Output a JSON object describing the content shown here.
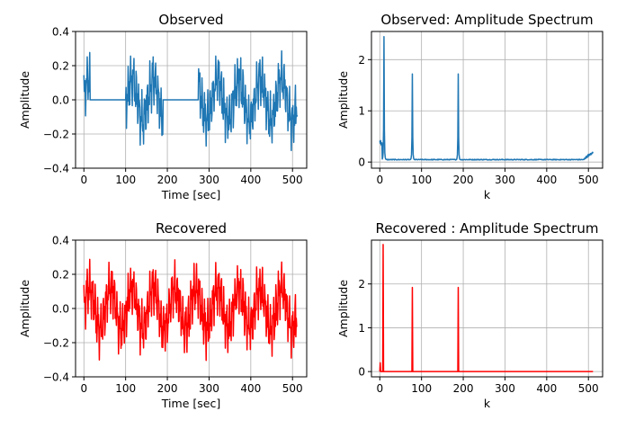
{
  "chart_data": [
    {
      "type": "line",
      "title": "Observed",
      "xlabel": "Time [sec]",
      "ylabel": "Amplitude",
      "xlim": [
        -20,
        534
      ],
      "ylim": [
        -0.4,
        0.4
      ],
      "xticks": [
        0,
        100,
        200,
        300,
        400,
        500
      ],
      "yticks": [
        -0.4,
        -0.2,
        0.0,
        0.2,
        0.4
      ],
      "ytick_labels": [
        "−0.4",
        "−0.2",
        "0.0",
        "0.2",
        "0.4"
      ],
      "grid": true,
      "color": "#1f77b4",
      "series": [
        {
          "signal": "time",
          "n": 512,
          "gaps": [
            [
              15,
              100
            ],
            [
              190,
              275
            ]
          ]
        }
      ]
    },
    {
      "type": "line",
      "title": "Observed: Amplitude Spectrum",
      "xlabel": "k",
      "ylabel": "Amplitude",
      "xlim": [
        -20,
        534
      ],
      "ylim": [
        -0.12,
        2.55
      ],
      "xticks": [
        0,
        100,
        200,
        300,
        400,
        500
      ],
      "yticks": [
        0,
        1,
        2
      ],
      "ytick_labels": [
        "0",
        "1",
        "2"
      ],
      "grid": true,
      "color": "#1f77b4",
      "series": [
        {
          "signal": "spectrum",
          "n": 512,
          "peaks": [
            [
              10,
              2.45
            ],
            [
              78,
              1.72
            ],
            [
              188,
              1.72
            ]
          ],
          "floor": 0.04
        }
      ]
    },
    {
      "type": "line",
      "title": "Recovered",
      "xlabel": "Time [sec]",
      "ylabel": "Amplitude",
      "xlim": [
        -20,
        534
      ],
      "ylim": [
        -0.4,
        0.4
      ],
      "xticks": [
        0,
        100,
        200,
        300,
        400,
        500
      ],
      "yticks": [
        -0.4,
        -0.2,
        0.0,
        0.2,
        0.4
      ],
      "ytick_labels": [
        "−0.4",
        "−0.2",
        "0.0",
        "0.2",
        "0.4"
      ],
      "grid": true,
      "color": "#ff0000",
      "series": [
        {
          "signal": "time",
          "n": 512,
          "gaps": []
        }
      ]
    },
    {
      "type": "line",
      "title": "Recovered : Amplitude Spectrum",
      "xlabel": "k",
      "ylabel": "Amplitude",
      "xlim": [
        -20,
        534
      ],
      "ylim": [
        -0.12,
        3.0
      ],
      "xticks": [
        0,
        100,
        200,
        300,
        400,
        500
      ],
      "yticks": [
        0,
        1,
        2
      ],
      "ytick_labels": [
        "0",
        "1",
        "2"
      ],
      "grid": true,
      "color": "#ff0000",
      "series": [
        {
          "signal": "sparse",
          "n": 512,
          "peaks": [
            [
              1,
              0.2
            ],
            [
              8,
              2.9
            ],
            [
              78,
              1.92
            ],
            [
              188,
              1.92
            ]
          ],
          "floor": 0.0
        }
      ]
    }
  ]
}
